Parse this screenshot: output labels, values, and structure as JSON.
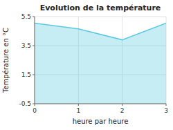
{
  "chart_data": {
    "type": "area",
    "title": "Evolution de la température",
    "x_label": "heure par heure",
    "y_label": "Température en °C",
    "x": [
      0,
      1,
      2,
      3
    ],
    "values": [
      5.05,
      4.65,
      3.9,
      5.05
    ],
    "color": "#5bc8e0",
    "xlim": [
      0,
      3
    ],
    "xticks": [
      0,
      1,
      2,
      3
    ],
    "ylim": [
      -0.5,
      5.5
    ],
    "yticks": [
      -0.5,
      1.5,
      3.5,
      5.5
    ],
    "grid": true
  }
}
